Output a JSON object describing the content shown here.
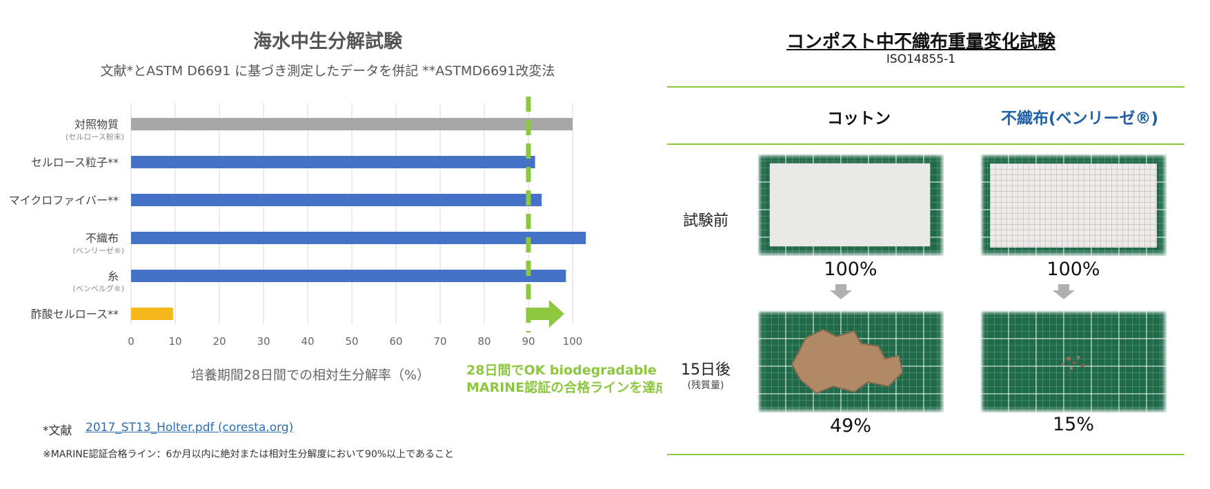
{
  "left": {
    "title": "海水中生分解試験",
    "subtitle": "文献*とASTM D6691 に基づき測定したデータを併記 **ASTMD6691改変法",
    "footnote_label": "*文献",
    "footnote_link": "2017_ST13_Holter.pdf (coresta.org)",
    "note": "※MARINE認証合格ライン：6か月以内に絶対または相対生分解度において90%以上であること"
  },
  "chart_data": {
    "type": "bar",
    "orientation": "horizontal",
    "categories": [
      {
        "label": "対照物質",
        "sublabel": "(セルロース粉末)"
      },
      {
        "label": "セルロース粒子**",
        "sublabel": ""
      },
      {
        "label": "マイクロファイバー**",
        "sublabel": ""
      },
      {
        "label": "不織布",
        "sublabel": "(ベンリーゼ®)"
      },
      {
        "label": "糸",
        "sublabel": "(ベンベルグ®)"
      },
      {
        "label": "酢酸セルロース**",
        "sublabel": ""
      }
    ],
    "values": [
      100,
      91.5,
      93,
      103,
      98.5,
      9.5
    ],
    "bar_colors": [
      "#a6a6a6",
      "#4472c4",
      "#4472c4",
      "#4472c4",
      "#4472c4",
      "#f4b81c"
    ],
    "xlim": [
      0,
      100
    ],
    "xticks": [
      "0",
      "10",
      "20",
      "30",
      "40",
      "50",
      "60",
      "70",
      "80",
      "90",
      "100"
    ],
    "xlabel": "培養期間28日間での相対生分解率（%）",
    "grid": "vertical",
    "threshold": 90,
    "threshold_color": "#8dc63f",
    "annotation": [
      "28日間でOK biodegradable",
      "MARINE認証の合格ラインを達成"
    ]
  },
  "right": {
    "title": "コンポスト中不織布重量変化試験",
    "subtitle": "ISO14855-1",
    "col_cotton": "コットン",
    "col_nonwoven": "不織布(ベンリーゼ®)",
    "col_nonwoven_color": "#1f5fa8",
    "row_before": "試験前",
    "row_after": "15日後",
    "row_after_sub": "(残質量)",
    "cotton_before": "100%",
    "nonwoven_before": "100%",
    "cotton_after": "49%",
    "nonwoven_after": "15%"
  }
}
